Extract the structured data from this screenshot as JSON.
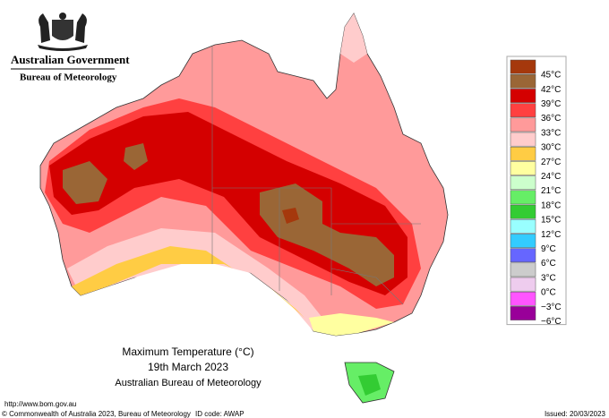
{
  "header": {
    "agency": "Australian Government",
    "bureau": "Bureau of Meteorology"
  },
  "legend": [
    {
      "label": "45°C",
      "color": "#a5380c"
    },
    {
      "label": "42°C",
      "color": "#9a6636"
    },
    {
      "label": "39°C",
      "color": "#d40000"
    },
    {
      "label": "36°C",
      "color": "#ff4040"
    },
    {
      "label": "33°C",
      "color": "#ff9a9a"
    },
    {
      "label": "30°C",
      "color": "#ffcccc"
    },
    {
      "label": "27°C",
      "color": "#ffcc44"
    },
    {
      "label": "24°C",
      "color": "#ffffa0"
    },
    {
      "label": "21°C",
      "color": "#ccffcc"
    },
    {
      "label": "18°C",
      "color": "#66ee66"
    },
    {
      "label": "15°C",
      "color": "#33cc33"
    },
    {
      "label": "12°C",
      "color": "#99ffff"
    },
    {
      "label": "9°C",
      "color": "#33ccff"
    },
    {
      "label": "6°C",
      "color": "#6666ff"
    },
    {
      "label": "3°C",
      "color": "#cccccc"
    },
    {
      "label": "0°C",
      "color": "#eeccee"
    },
    {
      "label": "−3°C",
      "color": "#ff55ff"
    },
    {
      "label": "−6°C",
      "color": "#990099"
    }
  ],
  "caption": [
    "Maximum Temperature (°C)",
    "19th March 2023",
    "Australian Bureau of Meteorology"
  ],
  "footer": {
    "url": "http://www.bom.gov.au",
    "copyright": "© Commonwealth of Australia 2023, Bureau of Meteorology",
    "id_code": "ID code: AWAP",
    "issued": "Issued: 20/03/2023"
  }
}
